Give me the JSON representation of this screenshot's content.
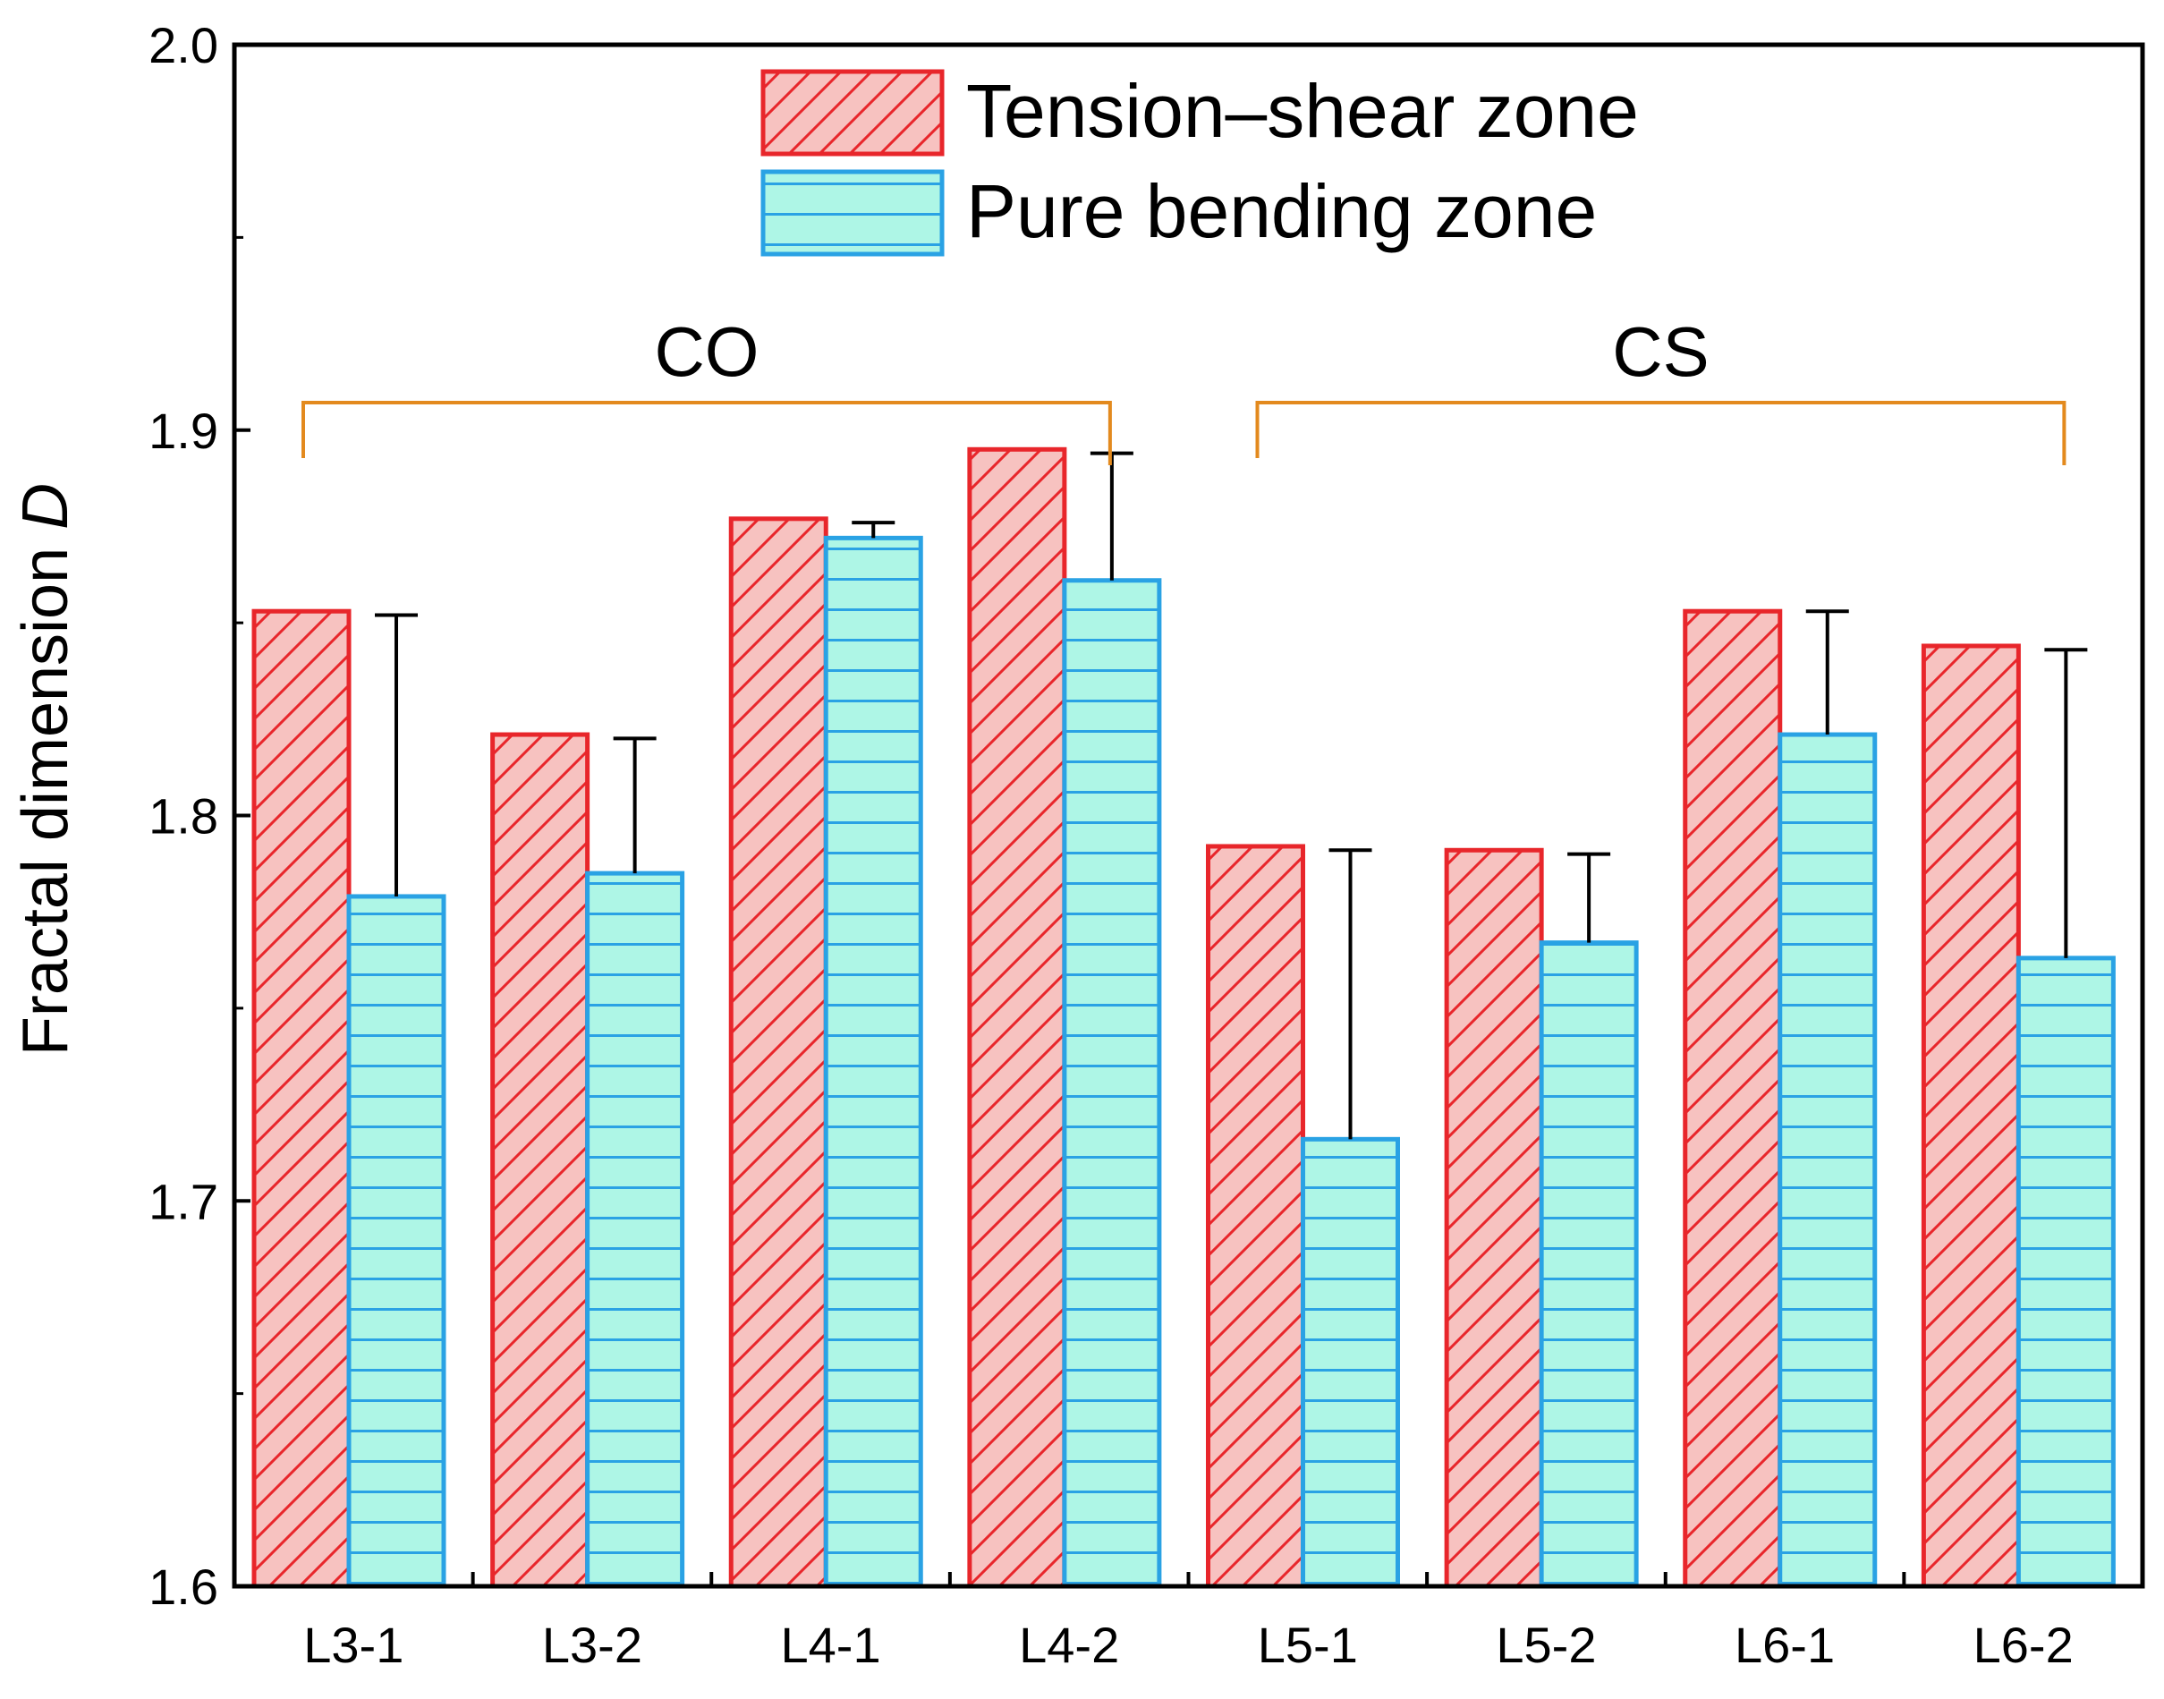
{
  "chart_data": {
    "type": "bar",
    "categories": [
      "L3-1",
      "L3-2",
      "L4-1",
      "L4-2",
      "L5-1",
      "L5-2",
      "L6-1",
      "L6-2"
    ],
    "series": [
      {
        "name": "Tension–shear zone",
        "values": [
          1.853,
          1.821,
          1.877,
          1.895,
          1.792,
          1.791,
          1.853,
          1.844
        ],
        "error_upper": [
          0,
          0,
          0,
          0,
          0,
          0,
          0,
          0
        ],
        "color": "#f7c2c0",
        "edge_color": "#e8262b",
        "hatch": "diagonal"
      },
      {
        "name": "Pure bending zone",
        "values": [
          1.779,
          1.785,
          1.872,
          1.861,
          1.716,
          1.767,
          1.821,
          1.763
        ],
        "error_upper": [
          0.073,
          0.035,
          0.004,
          0.033,
          0.075,
          0.023,
          0.032,
          0.08
        ],
        "color": "#aef6e6",
        "edge_color": "#2aa2e4",
        "hatch": "horizontal"
      }
    ],
    "ylabel_prefix": "Fractal dimension ",
    "ylabel_symbol": "D",
    "ylim": [
      1.6,
      2.0
    ],
    "y_ticks": [
      "1.6",
      "1.7",
      "1.8",
      "1.9",
      "2.0"
    ],
    "groups": [
      {
        "label": "CO",
        "from": "L3-1",
        "to": "L4-2"
      },
      {
        "label": "CS",
        "from": "L5-1",
        "to": "L6-2"
      }
    ],
    "group_bracket_color": "#e38a1e",
    "grid": false,
    "legend_position": "top-center"
  }
}
